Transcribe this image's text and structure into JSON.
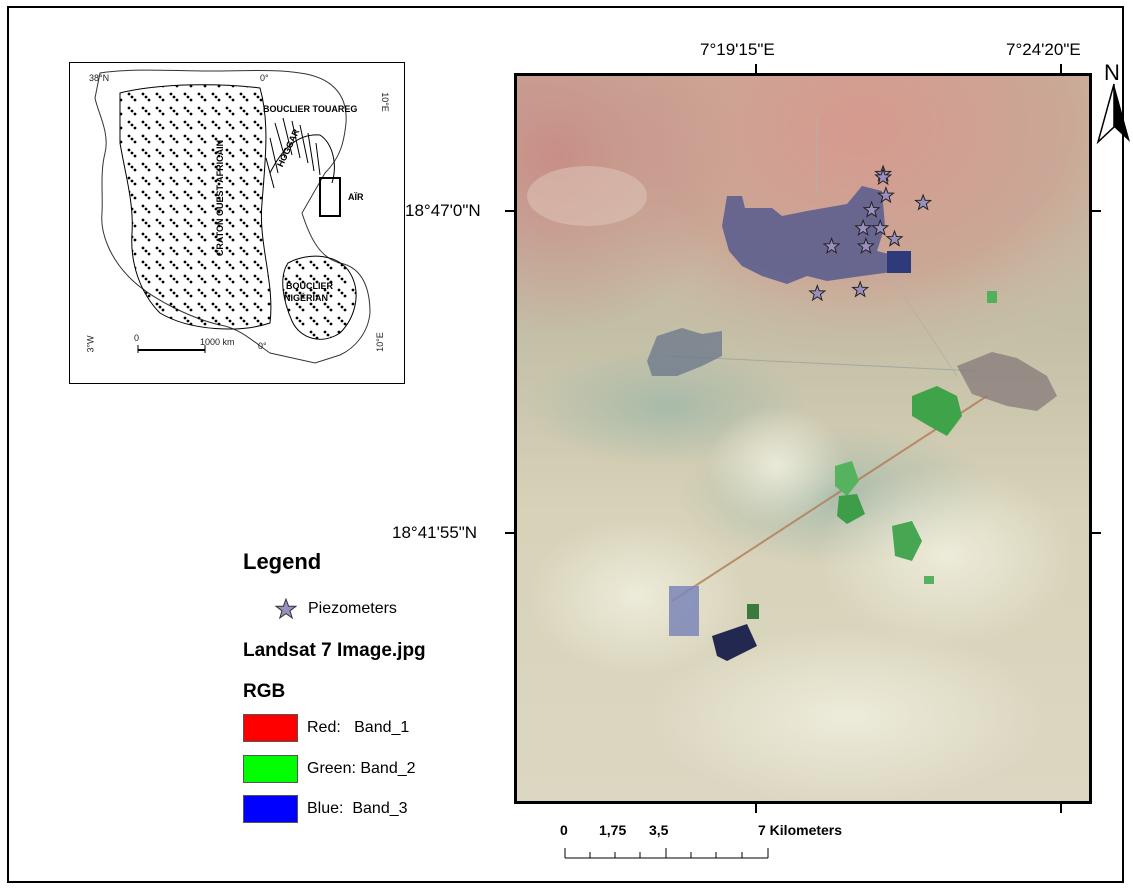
{
  "inset_map": {
    "labels": {
      "touareg": "BOUCLIER TOUAREG",
      "hoggar": "HOGGAR",
      "air": "AÏR",
      "craton": "CRATON OUEST AFRICAIN",
      "nigerian_1": "BOUCLIER",
      "nigerian_2": "NIGÉRIAN"
    },
    "ticks": {
      "lat_top": "38°N",
      "lon_top_mid": "0°",
      "lon_top_right": "10°E",
      "lon_bottom_left": "3°W",
      "lon_bottom_mid": "0°",
      "lon_bottom_right": "10°E"
    },
    "scale": {
      "zero": "0",
      "end": "1000 km"
    }
  },
  "main_map": {
    "coords": {
      "lon_1": "7°19'15\"E",
      "lon_2": "7°24'20\"E",
      "lat_1": "18°47'0\"N",
      "lat_2": "18°41'55\"N"
    },
    "north_label": "N",
    "piezometers": [
      {
        "lon_frac": 0.64,
        "lat_frac": 0.135
      },
      {
        "lon_frac": 0.645,
        "lat_frac": 0.165
      },
      {
        "lon_frac": 0.62,
        "lat_frac": 0.185
      },
      {
        "lon_frac": 0.71,
        "lat_frac": 0.175
      },
      {
        "lon_frac": 0.605,
        "lat_frac": 0.21
      },
      {
        "lon_frac": 0.635,
        "lat_frac": 0.21
      },
      {
        "lon_frac": 0.66,
        "lat_frac": 0.225
      },
      {
        "lon_frac": 0.55,
        "lat_frac": 0.235
      },
      {
        "lon_frac": 0.61,
        "lat_frac": 0.235
      },
      {
        "lon_frac": 0.64,
        "lat_frac": 0.14
      },
      {
        "lon_frac": 0.525,
        "lat_frac": 0.3
      },
      {
        "lon_frac": 0.6,
        "lat_frac": 0.295
      }
    ]
  },
  "legend": {
    "title": "Legend",
    "piezometers_label": "Piezometers",
    "layer_name": "Landsat 7 Image.jpg",
    "rgb_label": "RGB",
    "bands": [
      {
        "label": "Red:   Band_1",
        "color": "#ff0000"
      },
      {
        "label": "Green: Band_2",
        "color": "#00ff00"
      },
      {
        "label": "Blue:  Band_3",
        "color": "#0000ff"
      }
    ]
  },
  "scale_bar": {
    "labels": [
      "0",
      "1,75",
      "3,5",
      "7 Kilometers"
    ]
  },
  "colors": {
    "star_fill": "#9b8fc0",
    "vegetation": "#3fa34a",
    "built_up": "#4b4f8a"
  }
}
